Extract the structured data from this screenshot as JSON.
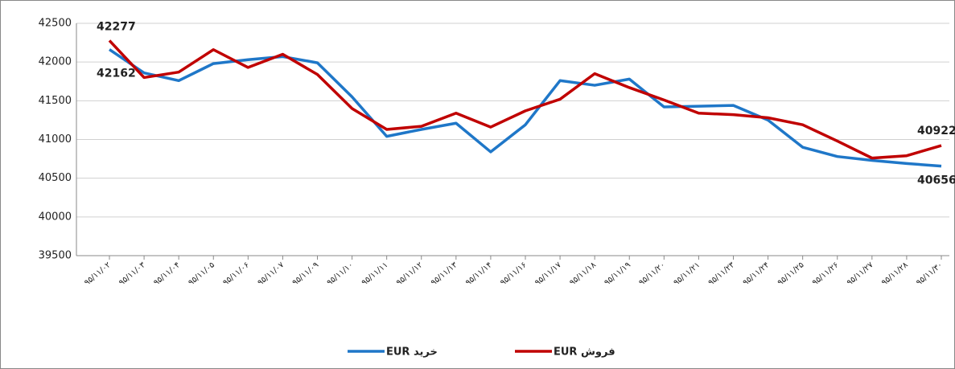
{
  "chart_data": {
    "type": "line",
    "categories": [
      "۹۵/۱۱/۰۲",
      "۹۵/۱۱/۰۳",
      "۹۵/۱۱/۰۴",
      "۹۵/۱۱/۰۵",
      "۹۵/۱۱/۰۶",
      "۹۵/۱۱/۰۷",
      "۹۵/۱۱/۰۹",
      "۹۵/۱۱/۱۰",
      "۹۵/۱۱/۱۱",
      "۹۵/۱۱/۱۲",
      "۹۵/۱۱/۱۳",
      "۹۵/۱۱/۱۴",
      "۹۵/۱۱/۱۶",
      "۹۵/۱۱/۱۷",
      "۹۵/۱۱/۱۸",
      "۹۵/۱۱/۱۹",
      "۹۵/۱۱/۲۰",
      "۹۵/۱۱/۲۱",
      "۹۵/۱۱/۲۳",
      "۹۵/۱۱/۲۴",
      "۹۵/۱۱/۲۵",
      "۹۵/۱۱/۲۶",
      "۹۵/۱۱/۲۷",
      "۹۵/۱۱/۲۸",
      "۹۵/۱۱/۳۰"
    ],
    "series": [
      {
        "name": "خرید EUR",
        "color": "#1f77c8",
        "values": [
          42162,
          41860,
          41760,
          41980,
          42030,
          42070,
          41990,
          41550,
          41040,
          41130,
          41210,
          40840,
          41190,
          41760,
          41700,
          41780,
          41420,
          41430,
          41440,
          41250,
          40900,
          40780,
          40730,
          40690,
          40656
        ]
      },
      {
        "name": "فروش EUR",
        "color": "#c00000",
        "values": [
          42277,
          41800,
          41870,
          42160,
          41930,
          42100,
          41840,
          41400,
          41130,
          41170,
          41340,
          41160,
          41370,
          41520,
          41850,
          41670,
          41510,
          41340,
          41320,
          41280,
          41190,
          40980,
          40760,
          40790,
          40922
        ]
      }
    ],
    "ylim": [
      39500,
      42500
    ],
    "yticks": [
      39500,
      40000,
      40500,
      41000,
      41500,
      42000,
      42500
    ],
    "grid": true
  }
}
